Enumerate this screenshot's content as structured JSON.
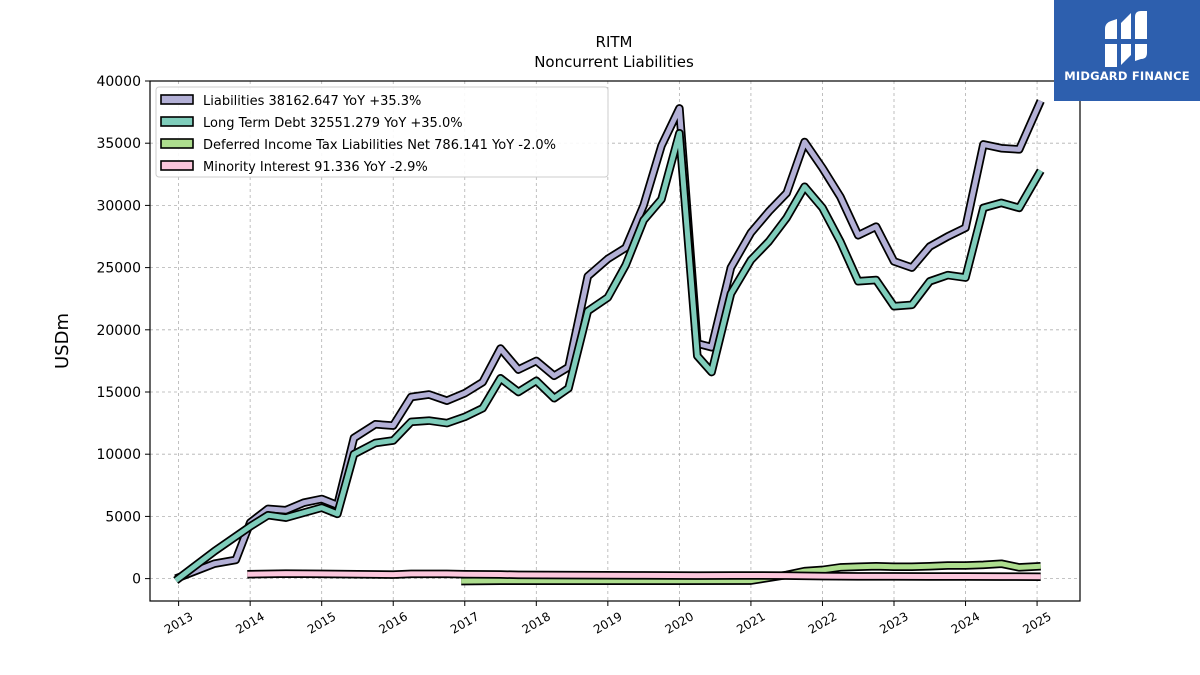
{
  "brand": {
    "name": "MIDGARD FINANCE",
    "bg_color": "#2d5fae"
  },
  "chart_data": {
    "type": "line",
    "title": "RITM",
    "subtitle": "Noncurrent  Liabilities",
    "ylabel": "USDm",
    "xlabel": "",
    "xlim": [
      2012.6,
      2025.6
    ],
    "ylim": [
      -1800,
      40000
    ],
    "yticks": [
      0,
      5000,
      10000,
      15000,
      20000,
      25000,
      30000,
      35000,
      40000
    ],
    "xticks": [
      "2013",
      "2014",
      "2015",
      "2016",
      "2017",
      "2018",
      "2019",
      "2020",
      "2021",
      "2022",
      "2023",
      "2024",
      "2025"
    ],
    "grid": true,
    "legend_position": "top-left",
    "series": [
      {
        "name": "Liabilities",
        "legend": "Liabilities  38162.647 YoY +35.3%",
        "color": "#b3b0d6",
        "points": [
          [
            2012.96,
            0
          ],
          [
            2013.5,
            1200
          ],
          [
            2013.8,
            1500
          ],
          [
            2014.0,
            4500
          ],
          [
            2014.25,
            5600
          ],
          [
            2014.5,
            5500
          ],
          [
            2014.75,
            6100
          ],
          [
            2015.0,
            6400
          ],
          [
            2015.22,
            5900
          ],
          [
            2015.45,
            11300
          ],
          [
            2015.75,
            12400
          ],
          [
            2016.0,
            12300
          ],
          [
            2016.25,
            14600
          ],
          [
            2016.5,
            14800
          ],
          [
            2016.75,
            14300
          ],
          [
            2017.0,
            14900
          ],
          [
            2017.25,
            15800
          ],
          [
            2017.5,
            18500
          ],
          [
            2017.75,
            16800
          ],
          [
            2018.0,
            17500
          ],
          [
            2018.25,
            16300
          ],
          [
            2018.45,
            17000
          ],
          [
            2018.72,
            24300
          ],
          [
            2019.0,
            25700
          ],
          [
            2019.25,
            26600
          ],
          [
            2019.5,
            30000
          ],
          [
            2019.75,
            34800
          ],
          [
            2020.0,
            37800
          ],
          [
            2020.25,
            18900
          ],
          [
            2020.45,
            18600
          ],
          [
            2020.72,
            25000
          ],
          [
            2021.0,
            27800
          ],
          [
            2021.25,
            29500
          ],
          [
            2021.5,
            31000
          ],
          [
            2021.75,
            35100
          ],
          [
            2022.0,
            33000
          ],
          [
            2022.25,
            30700
          ],
          [
            2022.5,
            27600
          ],
          [
            2022.75,
            28300
          ],
          [
            2023.0,
            25500
          ],
          [
            2023.25,
            25000
          ],
          [
            2023.5,
            26700
          ],
          [
            2023.75,
            27500
          ],
          [
            2024.0,
            28200
          ],
          [
            2024.25,
            34900
          ],
          [
            2024.5,
            34600
          ],
          [
            2024.75,
            34500
          ],
          [
            2025.05,
            38400
          ]
        ]
      },
      {
        "name": "Long Term Debt",
        "legend": "Long Term Debt  32551.279 YoY +35.0%",
        "color": "#7fcdbb",
        "points": [
          [
            2012.96,
            -150
          ],
          [
            2013.5,
            2200
          ],
          [
            2014.0,
            4200
          ],
          [
            2014.25,
            5100
          ],
          [
            2014.5,
            4900
          ],
          [
            2014.75,
            5300
          ],
          [
            2015.0,
            5700
          ],
          [
            2015.22,
            5200
          ],
          [
            2015.45,
            10000
          ],
          [
            2015.75,
            10900
          ],
          [
            2016.0,
            11100
          ],
          [
            2016.25,
            12600
          ],
          [
            2016.5,
            12700
          ],
          [
            2016.75,
            12500
          ],
          [
            2017.0,
            13000
          ],
          [
            2017.25,
            13700
          ],
          [
            2017.5,
            16100
          ],
          [
            2017.75,
            15000
          ],
          [
            2018.0,
            15900
          ],
          [
            2018.25,
            14500
          ],
          [
            2018.45,
            15300
          ],
          [
            2018.72,
            21500
          ],
          [
            2019.0,
            22600
          ],
          [
            2019.25,
            25200
          ],
          [
            2019.5,
            28800
          ],
          [
            2019.75,
            30500
          ],
          [
            2020.0,
            35800
          ],
          [
            2020.25,
            17900
          ],
          [
            2020.45,
            16600
          ],
          [
            2020.72,
            22900
          ],
          [
            2021.0,
            25600
          ],
          [
            2021.25,
            27100
          ],
          [
            2021.5,
            29000
          ],
          [
            2021.75,
            31500
          ],
          [
            2022.0,
            29800
          ],
          [
            2022.25,
            27100
          ],
          [
            2022.5,
            23900
          ],
          [
            2022.75,
            24000
          ],
          [
            2023.0,
            21900
          ],
          [
            2023.25,
            22000
          ],
          [
            2023.5,
            23900
          ],
          [
            2023.75,
            24400
          ],
          [
            2024.0,
            24200
          ],
          [
            2024.25,
            29800
          ],
          [
            2024.5,
            30200
          ],
          [
            2024.75,
            29800
          ],
          [
            2025.05,
            32800
          ]
        ]
      },
      {
        "name": "Deferred Income Tax Liabilities Net",
        "legend": "Deferred Income Tax Liabilities Net  786.141 YoY -2.0%",
        "color": "#addd8e",
        "points": [
          [
            2016.95,
            -200
          ],
          [
            2017.5,
            -180
          ],
          [
            2018.0,
            -180
          ],
          [
            2019.0,
            -180
          ],
          [
            2020.0,
            -180
          ],
          [
            2021.0,
            -160
          ],
          [
            2021.5,
            300
          ],
          [
            2021.75,
            600
          ],
          [
            2022.0,
            700
          ],
          [
            2022.25,
            900
          ],
          [
            2022.5,
            950
          ],
          [
            2022.75,
            1000
          ],
          [
            2023.0,
            950
          ],
          [
            2023.25,
            950
          ],
          [
            2023.5,
            1000
          ],
          [
            2023.75,
            1050
          ],
          [
            2024.0,
            1050
          ],
          [
            2024.25,
            1100
          ],
          [
            2024.5,
            1200
          ],
          [
            2024.75,
            900
          ],
          [
            2025.05,
            1000
          ]
        ]
      },
      {
        "name": "Minority Interest",
        "legend": "Minority Interest  91.336 YoY -2.9%",
        "color": "#fbc6dc",
        "points": [
          [
            2013.96,
            350
          ],
          [
            2014.5,
            400
          ],
          [
            2015.0,
            380
          ],
          [
            2015.5,
            350
          ],
          [
            2016.0,
            320
          ],
          [
            2016.25,
            380
          ],
          [
            2016.75,
            380
          ],
          [
            2017.0,
            350
          ],
          [
            2017.5,
            330
          ],
          [
            2017.75,
            300
          ],
          [
            2018.5,
            280
          ],
          [
            2019.5,
            260
          ],
          [
            2020.25,
            240
          ],
          [
            2020.75,
            250
          ],
          [
            2021.5,
            240
          ],
          [
            2022.0,
            200
          ],
          [
            2022.5,
            180
          ],
          [
            2023.0,
            180
          ],
          [
            2023.5,
            170
          ],
          [
            2024.0,
            170
          ],
          [
            2024.5,
            160
          ],
          [
            2025.05,
            150
          ]
        ]
      }
    ]
  }
}
